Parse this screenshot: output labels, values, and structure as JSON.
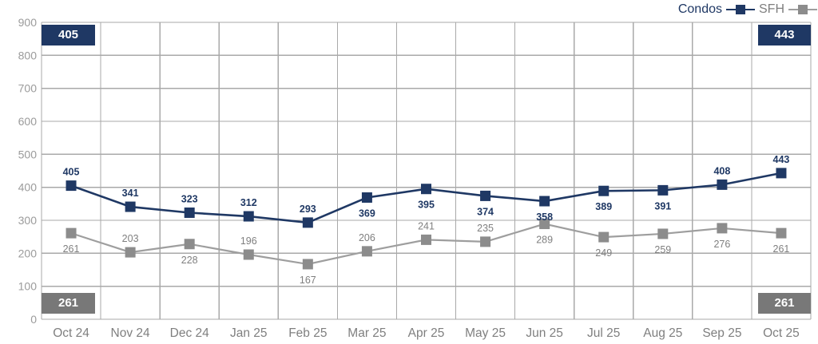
{
  "legend": {
    "items": [
      {
        "label": "Condos"
      },
      {
        "label": "SFH"
      }
    ]
  },
  "badges": {
    "top_left": "405",
    "top_right": "443",
    "bottom_left": "261",
    "bottom_right": "261"
  },
  "colors": {
    "condos": "#1f3864",
    "sfh_marker": "#8c8c8c",
    "sfh_line": "#9e9e9e",
    "sfh_label": "#7f7f7f",
    "grid": "#a9a9a9",
    "ytick_text": "#9b9b9b",
    "xtick_text": "#7f7f7f",
    "badge_gray": "#787878",
    "badge_text": "#ffffff"
  },
  "chart_data": {
    "type": "line",
    "title": "",
    "xlabel": "",
    "ylabel": "",
    "categories": [
      "Oct 24",
      "Nov 24",
      "Dec 24",
      "Jan 25",
      "Feb 25",
      "Mar 25",
      "Apr 25",
      "May 25",
      "Jun 25",
      "Jul 25",
      "Aug 25",
      "Sep 25",
      "Oct 25"
    ],
    "series": [
      {
        "name": "Condos",
        "values": [
          405,
          341,
          323,
          312,
          293,
          369,
          395,
          374,
          358,
          389,
          391,
          408,
          443
        ],
        "label_side": [
          "above",
          "above",
          "above",
          "above",
          "above",
          "below",
          "below",
          "below",
          "below",
          "below",
          "below",
          "above",
          "above"
        ]
      },
      {
        "name": "SFH",
        "values": [
          261,
          203,
          228,
          196,
          167,
          206,
          241,
          235,
          289,
          249,
          259,
          276,
          261
        ],
        "label_side": [
          "below",
          "above",
          "below",
          "above",
          "below",
          "above",
          "above",
          "above",
          "below",
          "below",
          "below",
          "below",
          "below"
        ]
      }
    ],
    "ylim": [
      0,
      900
    ],
    "yticks": [
      0,
      100,
      200,
      300,
      400,
      500,
      600,
      700,
      800,
      900
    ],
    "grid": true,
    "legend_position": "top-right"
  }
}
